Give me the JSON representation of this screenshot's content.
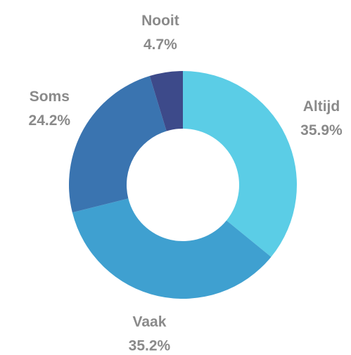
{
  "chart_data": {
    "type": "donut",
    "categories": [
      "Altijd",
      "Vaak",
      "Soms",
      "Nooit"
    ],
    "values": [
      35.9,
      35.2,
      24.2,
      4.7
    ],
    "value_labels": [
      "35.9%",
      "35.2%",
      "24.2%",
      "4.7%"
    ],
    "colors": [
      "#5bcde6",
      "#3fa0d0",
      "#3a74b0",
      "#3d4a8a"
    ]
  }
}
